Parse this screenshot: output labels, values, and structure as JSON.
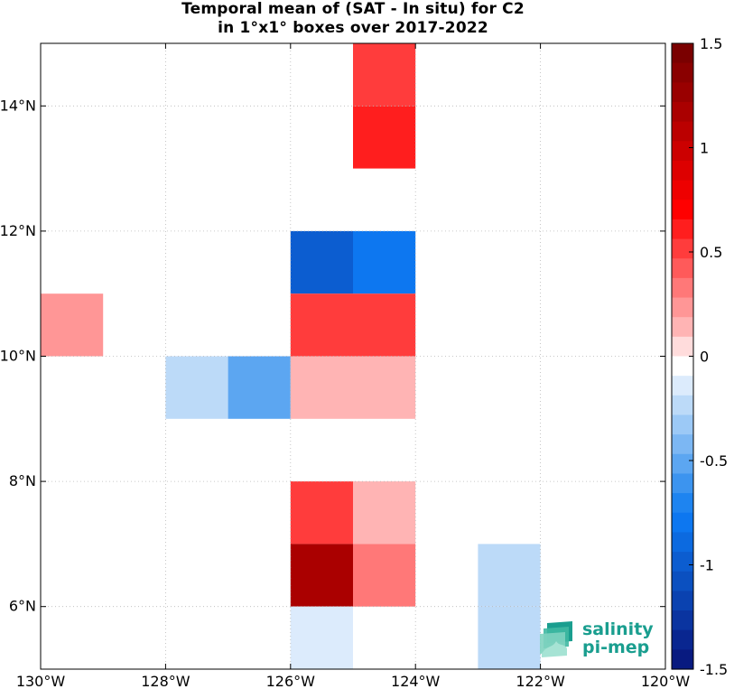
{
  "chart_data": {
    "type": "heatmap",
    "title": [
      "Temporal mean of (SAT - In situ) for C2",
      "in 1°x1° boxes over 2017-2022"
    ],
    "xlim": [
      -130,
      -120
    ],
    "ylim": [
      5,
      15
    ],
    "x_ticks": [
      -130,
      -128,
      -126,
      -124,
      -122,
      -120
    ],
    "x_tick_labels": [
      "130°W",
      "128°W",
      "126°W",
      "124°W",
      "122°W",
      "120°W"
    ],
    "y_ticks": [
      6,
      8,
      10,
      12,
      14
    ],
    "y_tick_labels": [
      "6°N",
      "8°N",
      "10°N",
      "12°N",
      "14°N"
    ],
    "grid": true,
    "cell_size_deg": 1,
    "cells": [
      {
        "lon": -125,
        "lat": 14,
        "value": 0.5
      },
      {
        "lon": -125,
        "lat": 13,
        "value": 0.6
      },
      {
        "lon": -126,
        "lat": 11,
        "value": -0.95
      },
      {
        "lon": -125,
        "lat": 11,
        "value": -0.8
      },
      {
        "lon": -126,
        "lat": 10,
        "value": 0.5
      },
      {
        "lon": -125,
        "lat": 10,
        "value": 0.5
      },
      {
        "lon": -130,
        "lat": 10,
        "value": 0.25
      },
      {
        "lon": -128,
        "lat": 9,
        "value": -0.25
      },
      {
        "lon": -127,
        "lat": 9,
        "value": -0.55
      },
      {
        "lon": -126,
        "lat": 9,
        "value": 0.12
      },
      {
        "lon": -125,
        "lat": 9,
        "value": 0.12
      },
      {
        "lon": -126,
        "lat": 7,
        "value": 0.55
      },
      {
        "lon": -125,
        "lat": 7,
        "value": 0.15
      },
      {
        "lon": -126,
        "lat": 6,
        "value": 1.15
      },
      {
        "lon": -125,
        "lat": 6,
        "value": 0.35
      },
      {
        "lon": -123,
        "lat": 6,
        "value": -0.25
      },
      {
        "lon": -126,
        "lat": 5,
        "value": -0.12
      },
      {
        "lon": -123,
        "lat": 5,
        "value": -0.25
      }
    ],
    "colorbar": {
      "range": [
        -1.5,
        1.5
      ],
      "ticks": [
        1.5,
        1,
        0.5,
        0,
        -0.5,
        -1,
        -1.5
      ],
      "tick_labels": [
        "1.5",
        "1",
        "0.5",
        "0",
        "-0.5",
        "-1",
        "-1.5"
      ],
      "colors": [
        "#7a0000",
        "#8a0000",
        "#990000",
        "#aa0000",
        "#bb0000",
        "#cc0000",
        "#dd0000",
        "#ee0000",
        "#ff0000",
        "#ff1e1e",
        "#ff3c3c",
        "#ff5a5a",
        "#ff7878",
        "#ff9696",
        "#ffb4b4",
        "#ffdcdc",
        "#ffffff",
        "#dcebfc",
        "#bcdaf8",
        "#9cc9f6",
        "#7cb7f3",
        "#5ca6f1",
        "#3c94ef",
        "#1e84f0",
        "#0d77f0",
        "#0c6ae0",
        "#0c5dd0",
        "#0b50c0",
        "#0a42b0",
        "#0a34a0",
        "#092690",
        "#081a80"
      ]
    }
  },
  "logo": {
    "line1": "salinity",
    "line2": "pi-mep"
  }
}
